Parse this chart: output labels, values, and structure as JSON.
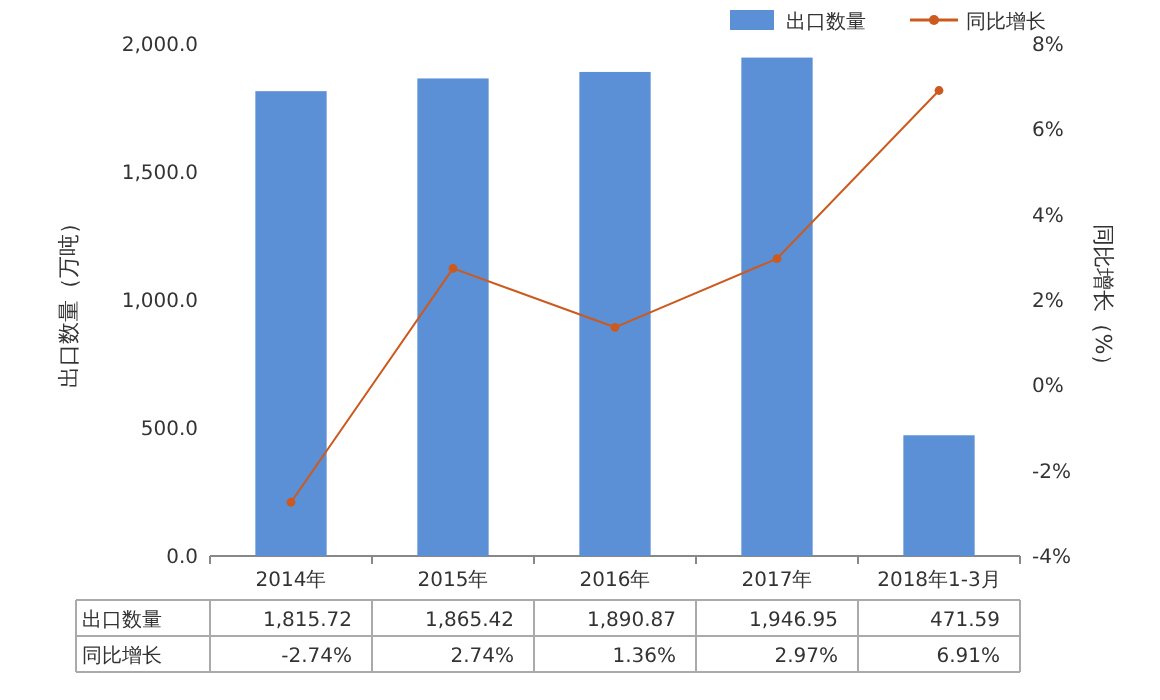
{
  "chart_data": {
    "type": "bar",
    "categories": [
      "2014年",
      "2015年",
      "2016年",
      "2017年",
      "2018年1-3月"
    ],
    "ylabel": "出口数量（万吨）",
    "y2label": "同比增长（%）",
    "ylim": [
      0,
      2000
    ],
    "yticks": [
      {
        "value": 0,
        "label": "0.0"
      },
      {
        "value": 500,
        "label": "500.0"
      },
      {
        "value": 1000,
        "label": "1,000.0"
      },
      {
        "value": 1500,
        "label": "1,500.0"
      },
      {
        "value": 2000,
        "label": "2,000.0"
      }
    ],
    "y2lim": [
      -4,
      8
    ],
    "y2ticks": [
      {
        "value": -4,
        "label": "-4%"
      },
      {
        "value": -2,
        "label": "-2%"
      },
      {
        "value": 0,
        "label": "0%"
      },
      {
        "value": 2,
        "label": "2%"
      },
      {
        "value": 4,
        "label": "4%"
      },
      {
        "value": 6,
        "label": "6%"
      },
      {
        "value": 8,
        "label": "8%"
      }
    ],
    "series": [
      {
        "name": "出口数量",
        "color": "#5b8fd6",
        "values": [
          1815.72,
          1865.42,
          1890.87,
          1946.95,
          471.59
        ],
        "value_labels": [
          "1,815.72",
          "1,865.42",
          "1,890.87",
          "1,946.95",
          "471.59"
        ]
      },
      {
        "name": "同比增长",
        "type": "line",
        "axis": "y2",
        "color": "#cc5a1e",
        "values": [
          -2.74,
          2.74,
          1.36,
          2.97,
          6.91
        ],
        "value_labels": [
          "-2.74%",
          "2.74%",
          "1.36%",
          "2.97%",
          "6.91%"
        ]
      }
    ],
    "legend": "top right",
    "marker": "circle",
    "line_style": "solid"
  }
}
